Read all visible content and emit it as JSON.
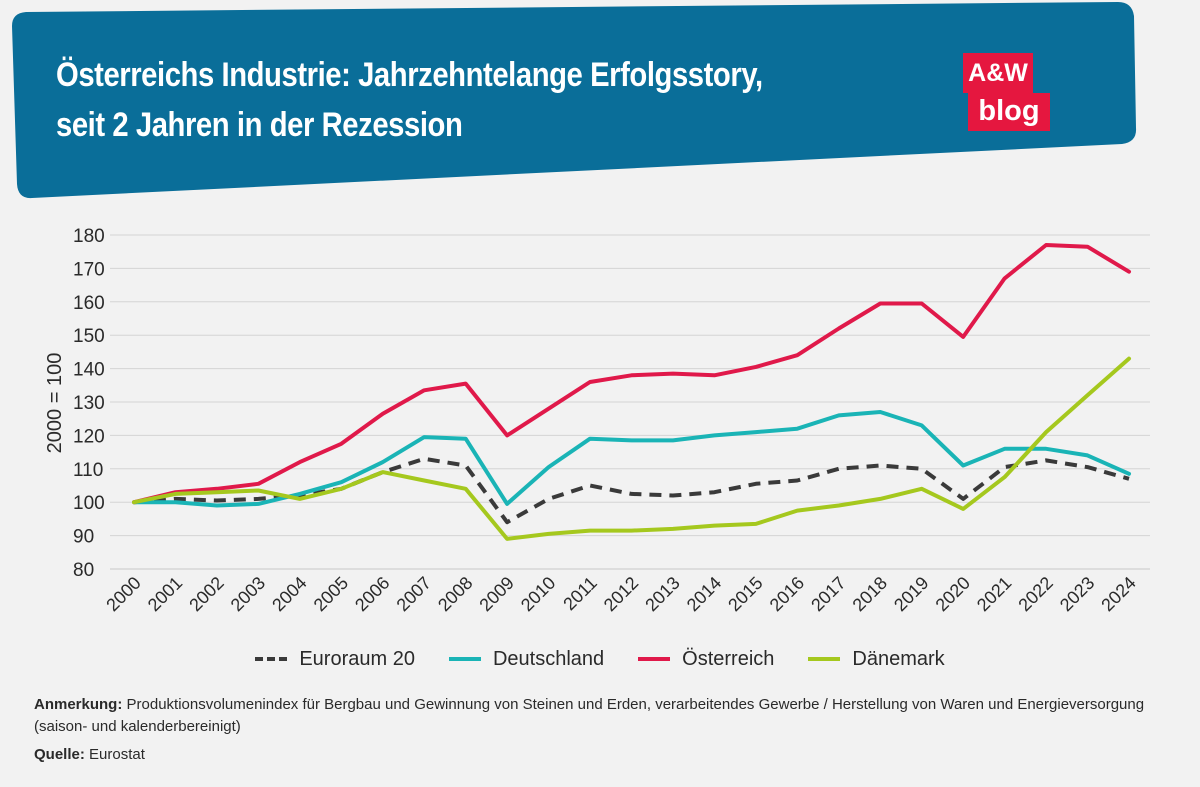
{
  "header": {
    "title_line1": "Österreichs Industrie: Jahrzehntelange Erfolgsstory,",
    "title_line2": "seit 2 Jahren in der Rezession",
    "bg_color": "#0a6e99",
    "logo_top": "A&W",
    "logo_bottom": "blog",
    "logo_color": "#e5173f"
  },
  "chart_data": {
    "type": "line",
    "ylabel": "2000 = 100",
    "ylim": [
      80,
      180
    ],
    "yticks": [
      80,
      90,
      100,
      110,
      120,
      130,
      140,
      150,
      160,
      170,
      180
    ],
    "grid": true,
    "categories": [
      "2000",
      "2001",
      "2002",
      "2003",
      "2004",
      "2005",
      "2006",
      "2007",
      "2008",
      "2009",
      "2010",
      "2011",
      "2012",
      "2013",
      "2014",
      "2015",
      "2016",
      "2017",
      "2018",
      "2019",
      "2020",
      "2021",
      "2022",
      "2023",
      "2024"
    ],
    "series": [
      {
        "name": "Euroraum 20",
        "color": "#3a3a3a",
        "dashed": true,
        "values": [
          100,
          101,
          100.5,
          101,
          102,
          104,
          109,
          113,
          111,
          94,
          101,
          105,
          102.5,
          102,
          103,
          105.5,
          106.5,
          110,
          111,
          110,
          101,
          110.5,
          112.5,
          110.5,
          107
        ]
      },
      {
        "name": "Deutschland",
        "color": "#1ab4b6",
        "dashed": false,
        "values": [
          100,
          100,
          99,
          99.5,
          102.5,
          106,
          112,
          119.5,
          119,
          99.5,
          110.5,
          119,
          118.5,
          118.5,
          120,
          121,
          122,
          126,
          127,
          123,
          111,
          116,
          116,
          114,
          108.5
        ]
      },
      {
        "name": "Österreich",
        "color": "#e0194a",
        "dashed": false,
        "values": [
          100,
          103,
          104,
          105.5,
          112,
          117.5,
          126.5,
          133.5,
          135.5,
          120,
          128,
          136,
          138,
          138.5,
          138,
          140.5,
          144,
          152,
          159.5,
          159.5,
          149.5,
          167,
          177,
          176.5,
          169
        ]
      },
      {
        "name": "Dänemark",
        "color": "#a5c81e",
        "dashed": false,
        "values": [
          100,
          102.5,
          103,
          103.5,
          101,
          104,
          109,
          106.5,
          104,
          89,
          90.5,
          91.5,
          91.5,
          92,
          93,
          93.5,
          97.5,
          99,
          101,
          104,
          98,
          107.5,
          121,
          132,
          143
        ]
      }
    ]
  },
  "notes": {
    "remark_label": "Anmerkung:",
    "remark_text": "Produktionsvolumenindex für Bergbau und Gewinnung von Steinen und Erden, verarbeitendes Gewerbe / Herstellung von Waren und Energieversorgung (saison- und kalenderbereinigt)",
    "source_label": "Quelle:",
    "source_text": "Eurostat"
  }
}
